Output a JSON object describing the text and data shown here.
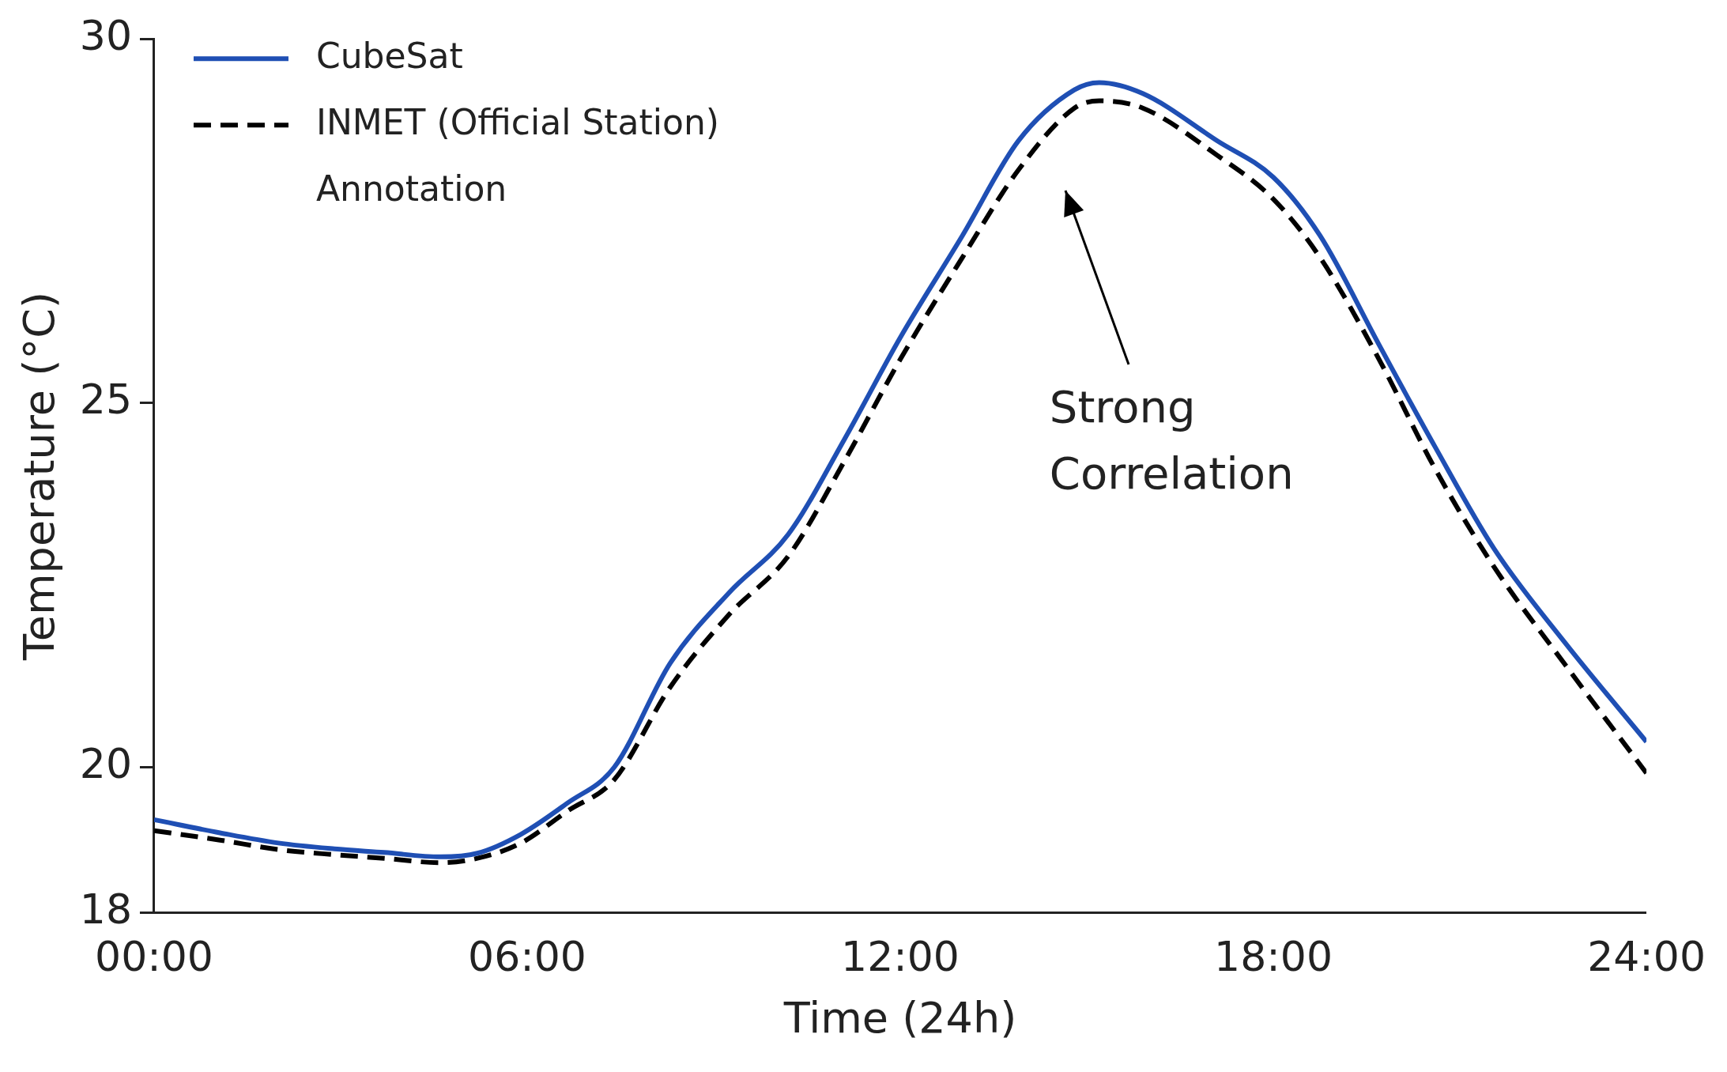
{
  "chart_data": {
    "type": "line",
    "xlabel": "Time (24h)",
    "ylabel": "Temperature (°C)",
    "x": [
      0,
      1.06,
      2,
      2.9,
      3.7,
      4.6,
      5.2,
      5.9,
      6.65,
      7.4,
      8.3,
      9.25,
      10.2,
      11.1,
      12,
      13,
      13.9,
      14.8,
      15.2,
      15.9,
      17.1,
      18,
      18.75,
      19.7,
      20.6,
      21.55,
      22.7,
      24
    ],
    "series": [
      {
        "name": "CubeSat",
        "color": "#1f4fb4",
        "line_style": "solid",
        "values": [
          19.28,
          19.1,
          18.96,
          18.88,
          18.83,
          18.77,
          18.82,
          19.08,
          19.51,
          20,
          21.43,
          22.4,
          23.2,
          24.5,
          25.9,
          27.3,
          28.6,
          29.3,
          29.4,
          29.25,
          28.6,
          28.1,
          27.3,
          25.8,
          24.4,
          23.0,
          21.7,
          20.35
        ]
      },
      {
        "name": "INMET (Official Station)",
        "color": "#000000",
        "line_style": "dashed",
        "values": [
          19.13,
          19.0,
          18.87,
          18.8,
          18.75,
          18.69,
          18.75,
          18.96,
          19.4,
          19.83,
          21.1,
          22.1,
          22.9,
          24.2,
          25.6,
          27.0,
          28.2,
          29.05,
          29.15,
          29.05,
          28.4,
          27.8,
          27.0,
          25.6,
          24.1,
          22.75,
          21.4,
          19.92
        ]
      }
    ],
    "xlim": [
      0,
      24
    ],
    "xticks": [
      {
        "value": 0,
        "label": "00:00"
      },
      {
        "value": 6,
        "label": "06:00"
      },
      {
        "value": 12,
        "label": "12:00"
      },
      {
        "value": 18,
        "label": "18:00"
      },
      {
        "value": 24,
        "label": "24:00"
      }
    ],
    "ylim": [
      18,
      30
    ],
    "yticks": [
      18,
      20,
      25,
      30
    ],
    "grid": false,
    "legend": "top left",
    "marker": "none",
    "annotations": [
      "Annotation",
      {
        "text": "Strong\nCorrelation"
      }
    ]
  }
}
